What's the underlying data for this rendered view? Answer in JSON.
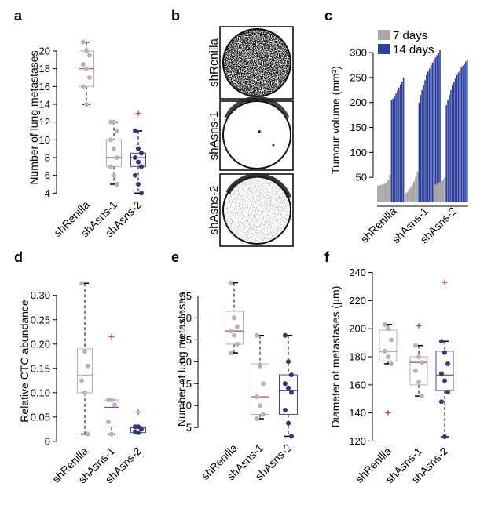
{
  "colors": {
    "renilla_box": "#c8a0c8",
    "renilla_dot": "#b4b4b4",
    "asns1_box": "#c8a0c8",
    "asns1_dot": "#b4b4c8",
    "asns2_box": "#3c4c96",
    "asns2_dot": "#33357a",
    "median": "#c03a5a",
    "outlier": "#c03a5a",
    "bar_7days": "#a9a9a9",
    "bar_14days": "#2c3f9e"
  },
  "panels": {
    "a": {
      "letter": "a"
    },
    "b": {
      "letter": "b",
      "labels": [
        "shRenilla",
        "shAsns-1",
        "shAsns-2"
      ]
    },
    "c": {
      "letter": "c"
    },
    "d": {
      "letter": "d"
    },
    "e": {
      "letter": "e"
    },
    "f": {
      "letter": "f"
    }
  },
  "chart_data": [
    {
      "id": "a",
      "type": "box",
      "title": "",
      "ylabel": "Number of lung metastases",
      "ylim": [
        3.5,
        21.5
      ],
      "yticks": [
        4,
        6,
        8,
        10,
        12,
        14,
        16,
        18,
        20
      ],
      "categories": [
        "shRenilla",
        "shAsns-1",
        "shAsns-2"
      ],
      "series": [
        {
          "name": "shRenilla",
          "min": 14,
          "q1": 16,
          "median": 18,
          "q3": 20,
          "max": 21,
          "points": [
            21,
            20,
            19.5,
            18.5,
            18,
            17,
            16,
            14
          ],
          "outliers": []
        },
        {
          "name": "shAsns-1",
          "min": 5,
          "q1": 7,
          "median": 8,
          "q3": 10,
          "max": 12,
          "points": [
            12,
            12,
            11,
            10,
            9,
            8,
            7,
            6,
            5
          ],
          "outliers": []
        },
        {
          "name": "shAsns-2",
          "min": 4,
          "q1": 7,
          "median": 8,
          "q3": 8.5,
          "max": 11,
          "points": [
            11,
            9,
            8.5,
            8,
            7.5,
            7,
            6,
            5,
            4
          ],
          "outliers": [
            13
          ]
        }
      ]
    },
    {
      "id": "c",
      "type": "bar",
      "ylabel": "Tumour volume (mm³)",
      "ylim": [
        0,
        330
      ],
      "yticks": [
        50,
        100,
        150,
        200,
        250,
        300
      ],
      "legend": [
        "7 days",
        "14 days"
      ],
      "legend_position": "top-left",
      "categories": [
        "shRenilla",
        "shAsns-1",
        "shAsns-2"
      ],
      "series": [
        {
          "name": "shRenilla",
          "days7": [
            33,
            34,
            35,
            36,
            38,
            40,
            45,
            55
          ],
          "days14": [
            205,
            208,
            212,
            218,
            224,
            230,
            236,
            242,
            250
          ]
        },
        {
          "name": "shAsns-1",
          "days7": [
            18,
            20,
            25,
            30,
            35,
            42,
            50,
            62
          ],
          "days14": [
            200,
            215,
            225,
            235,
            245,
            255,
            262,
            268,
            275,
            280,
            285,
            290,
            295,
            300,
            305
          ]
        },
        {
          "name": "shAsns-2",
          "days7": [
            35,
            36,
            38,
            40,
            42,
            45,
            50
          ],
          "days14": [
            195,
            205,
            215,
            225,
            235,
            242,
            248,
            255,
            260,
            265,
            270,
            274,
            278,
            282,
            285
          ]
        }
      ]
    },
    {
      "id": "d",
      "type": "box",
      "ylabel": "Relative CTC abundance",
      "ylim": [
        -0.005,
        0.335
      ],
      "yticks": [
        0,
        0.05,
        0.1,
        0.15,
        0.2,
        0.25,
        0.3
      ],
      "ytick_labels": [
        "0",
        "0.05",
        "0.10",
        "0.15",
        "0.20",
        "0.25",
        "0.30"
      ],
      "categories": [
        "shRenilla",
        "shAsns-1",
        "shAsns-2"
      ],
      "series": [
        {
          "name": "shRenilla",
          "min": 0.015,
          "q1": 0.1,
          "median": 0.135,
          "q3": 0.19,
          "max": 0.325,
          "points": [
            0.325,
            0.185,
            0.155,
            0.125,
            0.1,
            0.015
          ],
          "outliers": []
        },
        {
          "name": "shAsns-1",
          "min": 0.015,
          "q1": 0.03,
          "median": 0.07,
          "q3": 0.085,
          "max": 0.085,
          "points": [
            0.085,
            0.085,
            0.075,
            0.04,
            0.015
          ],
          "outliers": [
            0.215
          ]
        },
        {
          "name": "shAsns-2",
          "min": 0.018,
          "q1": 0.018,
          "median": 0.028,
          "q3": 0.03,
          "max": 0.03,
          "points": [
            0.03,
            0.03,
            0.025,
            0.02,
            0.018
          ],
          "outliers": [
            0.06
          ]
        }
      ]
    },
    {
      "id": "e",
      "type": "box",
      "ylabel": "Number of lung metastases",
      "ylim": [
        2,
        39
      ],
      "yticks": [
        5,
        10,
        15,
        20,
        25,
        30,
        35
      ],
      "categories": [
        "shRenilla",
        "shAsns-1",
        "shAsns-2"
      ],
      "series": [
        {
          "name": "shRenilla",
          "min": 22,
          "q1": 24,
          "median": 27,
          "q3": 31.5,
          "max": 38,
          "points": [
            38,
            30,
            28,
            27,
            26,
            24,
            22
          ],
          "outliers": []
        },
        {
          "name": "shAsns-1",
          "min": 7,
          "q1": 8,
          "median": 12,
          "q3": 19.5,
          "max": 26,
          "points": [
            26,
            19,
            15,
            12,
            10,
            8,
            7
          ],
          "outliers": []
        },
        {
          "name": "shAsns-2",
          "min": 3,
          "q1": 8,
          "median": 13.5,
          "q3": 17,
          "max": 26,
          "points": [
            26,
            20,
            17,
            15,
            14,
            13,
            9,
            6,
            3
          ],
          "outliers": []
        }
      ]
    },
    {
      "id": "f",
      "type": "box",
      "ylabel": "Diameter of metastases (µm)",
      "ylim": [
        118,
        242
      ],
      "yticks": [
        120,
        140,
        160,
        180,
        200,
        220,
        240
      ],
      "categories": [
        "shRenilla",
        "shAsns-1",
        "shAsns-2"
      ],
      "series": [
        {
          "name": "shRenilla",
          "min": 175,
          "q1": 177,
          "median": 184,
          "q3": 199,
          "max": 203,
          "points": [
            203,
            200,
            192,
            184,
            180,
            175
          ],
          "outliers": [
            140
          ]
        },
        {
          "name": "shAsns-1",
          "min": 152,
          "q1": 160,
          "median": 176,
          "q3": 180,
          "max": 188,
          "points": [
            188,
            180,
            176,
            170,
            162,
            152
          ],
          "outliers": [
            202
          ]
        },
        {
          "name": "shAsns-2",
          "min": 123,
          "q1": 156,
          "median": 167,
          "q3": 184,
          "max": 191,
          "points": [
            191,
            183,
            175,
            168,
            163,
            155,
            148,
            123
          ],
          "outliers": [
            233
          ]
        }
      ]
    }
  ]
}
